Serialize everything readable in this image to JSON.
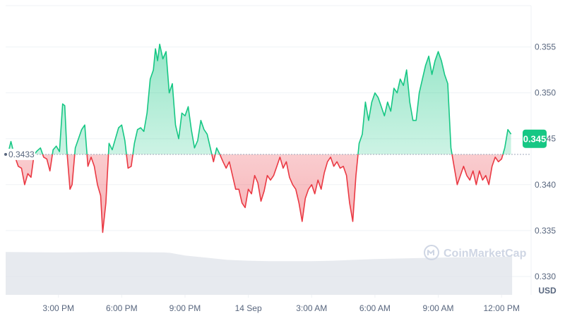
{
  "chart_data": {
    "type": "area",
    "baseline_value": 0.3433,
    "baseline_label": "0.3433",
    "current_label": "0.345",
    "currency_label": "USD",
    "watermark": "CoinMarketCap",
    "ylim": [
      0.328,
      0.3595
    ],
    "y_ticks": [
      {
        "value": 0.355,
        "label": "0.355"
      },
      {
        "value": 0.35,
        "label": "0.350"
      },
      {
        "value": 0.345,
        "label": "0.345"
      },
      {
        "value": 0.34,
        "label": "0.340"
      },
      {
        "value": 0.335,
        "label": "0.335"
      },
      {
        "value": 0.33,
        "label": "0.330"
      }
    ],
    "x_ticks": [
      {
        "hour": 3,
        "label": "3:00 PM"
      },
      {
        "hour": 6,
        "label": "6:00 PM"
      },
      {
        "hour": 9,
        "label": "9:00 PM"
      },
      {
        "hour": 12,
        "label": "14 Sep"
      },
      {
        "hour": 15,
        "label": "3:00 AM"
      },
      {
        "hour": 18,
        "label": "6:00 AM"
      },
      {
        "hour": 21,
        "label": "9:00 AM"
      },
      {
        "hour": 24,
        "label": "12:00 PM"
      }
    ],
    "xlim": [
      0.5,
      25.4
    ],
    "x_unit": "hours after 12:00 PM on 13 Sep",
    "price_series": [
      [
        0.6,
        0.3433
      ],
      [
        0.75,
        0.3447
      ],
      [
        0.9,
        0.3433
      ],
      [
        1.1,
        0.342
      ],
      [
        1.25,
        0.3418
      ],
      [
        1.4,
        0.34
      ],
      [
        1.55,
        0.3412
      ],
      [
        1.7,
        0.3408
      ],
      [
        1.85,
        0.3433
      ],
      [
        2.0,
        0.3437
      ],
      [
        2.15,
        0.344
      ],
      [
        2.3,
        0.343
      ],
      [
        2.45,
        0.3428
      ],
      [
        2.6,
        0.3415
      ],
      [
        2.75,
        0.3438
      ],
      [
        2.9,
        0.3442
      ],
      [
        3.05,
        0.3436
      ],
      [
        3.2,
        0.3488
      ],
      [
        3.3,
        0.3486
      ],
      [
        3.4,
        0.3437
      ],
      [
        3.55,
        0.3395
      ],
      [
        3.65,
        0.34
      ],
      [
        3.8,
        0.344
      ],
      [
        3.95,
        0.345
      ],
      [
        4.1,
        0.346
      ],
      [
        4.25,
        0.3465
      ],
      [
        4.4,
        0.342
      ],
      [
        4.55,
        0.343
      ],
      [
        4.7,
        0.342
      ],
      [
        4.85,
        0.34
      ],
      [
        5.0,
        0.3388
      ],
      [
        5.1,
        0.3348
      ],
      [
        5.25,
        0.338
      ],
      [
        5.4,
        0.3445
      ],
      [
        5.55,
        0.3438
      ],
      [
        5.7,
        0.345
      ],
      [
        5.85,
        0.3462
      ],
      [
        6.0,
        0.3465
      ],
      [
        6.15,
        0.3448
      ],
      [
        6.3,
        0.3418
      ],
      [
        6.45,
        0.342
      ],
      [
        6.6,
        0.3445
      ],
      [
        6.75,
        0.346
      ],
      [
        6.9,
        0.3462
      ],
      [
        7.05,
        0.3458
      ],
      [
        7.2,
        0.3478
      ],
      [
        7.35,
        0.3515
      ],
      [
        7.5,
        0.3525
      ],
      [
        7.6,
        0.3548
      ],
      [
        7.7,
        0.3535
      ],
      [
        7.8,
        0.3553
      ],
      [
        7.95,
        0.3537
      ],
      [
        8.1,
        0.3545
      ],
      [
        8.25,
        0.35
      ],
      [
        8.4,
        0.351
      ],
      [
        8.55,
        0.3465
      ],
      [
        8.7,
        0.345
      ],
      [
        8.85,
        0.3478
      ],
      [
        9.0,
        0.3475
      ],
      [
        9.15,
        0.3485
      ],
      [
        9.3,
        0.346
      ],
      [
        9.45,
        0.344
      ],
      [
        9.6,
        0.3448
      ],
      [
        9.75,
        0.347
      ],
      [
        9.9,
        0.346
      ],
      [
        10.05,
        0.3455
      ],
      [
        10.2,
        0.344
      ],
      [
        10.35,
        0.3425
      ],
      [
        10.5,
        0.344
      ],
      [
        10.65,
        0.3433
      ],
      [
        10.8,
        0.3425
      ],
      [
        10.95,
        0.3418
      ],
      [
        11.1,
        0.3425
      ],
      [
        11.25,
        0.341
      ],
      [
        11.4,
        0.3395
      ],
      [
        11.55,
        0.3395
      ],
      [
        11.7,
        0.338
      ],
      [
        11.85,
        0.3375
      ],
      [
        12.0,
        0.3395
      ],
      [
        12.15,
        0.339
      ],
      [
        12.3,
        0.341
      ],
      [
        12.45,
        0.3402
      ],
      [
        12.6,
        0.3382
      ],
      [
        12.75,
        0.3393
      ],
      [
        12.9,
        0.341
      ],
      [
        13.05,
        0.3405
      ],
      [
        13.2,
        0.341
      ],
      [
        13.35,
        0.342
      ],
      [
        13.5,
        0.343
      ],
      [
        13.65,
        0.3418
      ],
      [
        13.8,
        0.3425
      ],
      [
        13.95,
        0.3408
      ],
      [
        14.1,
        0.34
      ],
      [
        14.25,
        0.3395
      ],
      [
        14.4,
        0.338
      ],
      [
        14.55,
        0.336
      ],
      [
        14.7,
        0.3385
      ],
      [
        14.85,
        0.3395
      ],
      [
        15.0,
        0.34
      ],
      [
        15.15,
        0.339
      ],
      [
        15.3,
        0.3405
      ],
      [
        15.45,
        0.3395
      ],
      [
        15.6,
        0.3413
      ],
      [
        15.75,
        0.3425
      ],
      [
        15.9,
        0.343
      ],
      [
        16.05,
        0.342
      ],
      [
        16.2,
        0.3425
      ],
      [
        16.35,
        0.3418
      ],
      [
        16.5,
        0.342
      ],
      [
        16.65,
        0.341
      ],
      [
        16.8,
        0.338
      ],
      [
        16.95,
        0.336
      ],
      [
        17.1,
        0.341
      ],
      [
        17.25,
        0.3445
      ],
      [
        17.4,
        0.3455
      ],
      [
        17.55,
        0.349
      ],
      [
        17.7,
        0.347
      ],
      [
        17.85,
        0.349
      ],
      [
        18.0,
        0.35
      ],
      [
        18.15,
        0.3495
      ],
      [
        18.3,
        0.3485
      ],
      [
        18.45,
        0.3475
      ],
      [
        18.6,
        0.349
      ],
      [
        18.75,
        0.348
      ],
      [
        18.9,
        0.3505
      ],
      [
        19.05,
        0.35
      ],
      [
        19.2,
        0.3515
      ],
      [
        19.35,
        0.3508
      ],
      [
        19.5,
        0.3525
      ],
      [
        19.65,
        0.349
      ],
      [
        19.8,
        0.347
      ],
      [
        19.95,
        0.347
      ],
      [
        20.1,
        0.35
      ],
      [
        20.25,
        0.3515
      ],
      [
        20.4,
        0.353
      ],
      [
        20.55,
        0.354
      ],
      [
        20.7,
        0.352
      ],
      [
        20.85,
        0.3535
      ],
      [
        21.0,
        0.3545
      ],
      [
        21.15,
        0.3535
      ],
      [
        21.3,
        0.352
      ],
      [
        21.45,
        0.351
      ],
      [
        21.6,
        0.344
      ],
      [
        21.75,
        0.342
      ],
      [
        21.9,
        0.34
      ],
      [
        22.05,
        0.341
      ],
      [
        22.2,
        0.342
      ],
      [
        22.35,
        0.341
      ],
      [
        22.5,
        0.3405
      ],
      [
        22.65,
        0.3415
      ],
      [
        22.8,
        0.34
      ],
      [
        22.95,
        0.3415
      ],
      [
        23.1,
        0.3405
      ],
      [
        23.25,
        0.341
      ],
      [
        23.4,
        0.34
      ],
      [
        23.55,
        0.342
      ],
      [
        23.7,
        0.343
      ],
      [
        23.85,
        0.3425
      ],
      [
        24.0,
        0.3428
      ],
      [
        24.15,
        0.344
      ],
      [
        24.3,
        0.346
      ],
      [
        24.45,
        0.3455
      ]
    ],
    "volume_series": [
      [
        0.5,
        0.98
      ],
      [
        3.0,
        0.97
      ],
      [
        6.0,
        0.98
      ],
      [
        8.0,
        0.97
      ],
      [
        8.3,
        0.96
      ],
      [
        9.0,
        0.9
      ],
      [
        10.0,
        0.85
      ],
      [
        11.0,
        0.8
      ],
      [
        12.0,
        0.78
      ],
      [
        13.0,
        0.77
      ],
      [
        15.0,
        0.77
      ],
      [
        16.0,
        0.78
      ],
      [
        17.0,
        0.8
      ],
      [
        18.0,
        0.82
      ],
      [
        20.0,
        0.84
      ],
      [
        22.0,
        0.86
      ],
      [
        24.0,
        0.87
      ],
      [
        24.5,
        0.88
      ]
    ],
    "colors": {
      "up_line": "#16c784",
      "down_line": "#ea3943",
      "up_fill": "#16c784",
      "down_fill": "#ea3943",
      "grid": "#eff2f5",
      "baseline": "#a1a7bb",
      "tick_text": "#58667e",
      "watermark": "#cfd6e4",
      "volume": "#dfe3ea",
      "badge_bg": "#16c784",
      "badge_text": "#ffffff"
    }
  }
}
